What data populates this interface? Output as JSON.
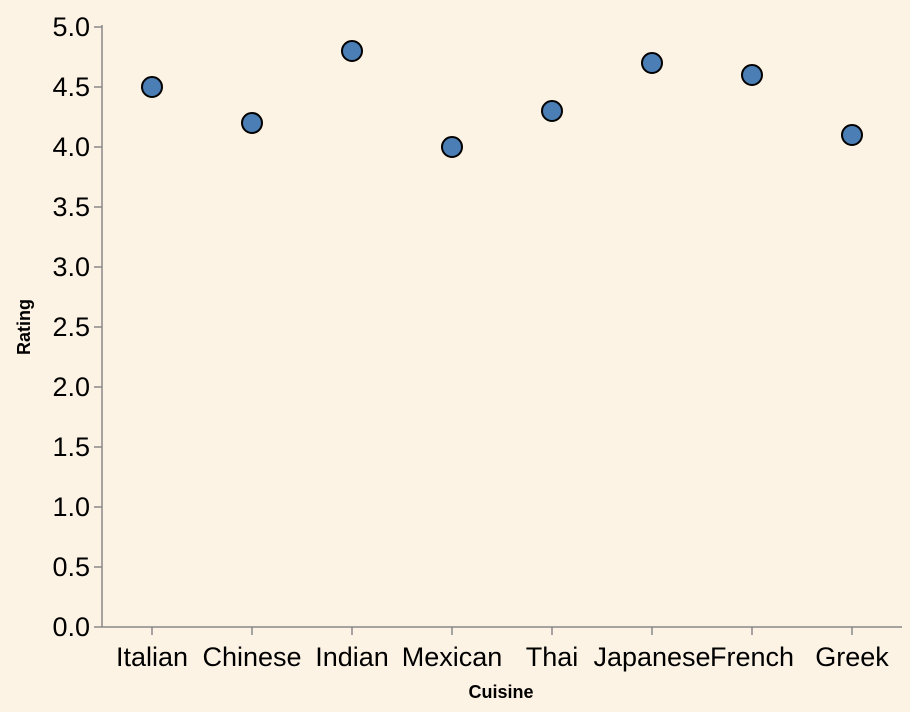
{
  "colors": {
    "background": "#fdf3e5",
    "point_fill": "#4a7eb4",
    "point_stroke": "#000000",
    "axis": "#888888"
  },
  "chart_data": {
    "type": "scatter",
    "title": "",
    "xlabel": "Cuisine",
    "ylabel": "Rating",
    "categories": [
      "Italian",
      "Chinese",
      "Indian",
      "Mexican",
      "Thai",
      "Japanese",
      "French",
      "Greek"
    ],
    "values": [
      4.5,
      4.2,
      4.8,
      4.0,
      4.3,
      4.7,
      4.6,
      4.1
    ],
    "ylim": [
      0,
      5
    ],
    "yticks": [
      "0.0",
      "0.5",
      "1.0",
      "1.5",
      "2.0",
      "2.5",
      "3.0",
      "3.5",
      "4.0",
      "4.5",
      "5.0"
    ],
    "grid": false,
    "legend": "none"
  }
}
